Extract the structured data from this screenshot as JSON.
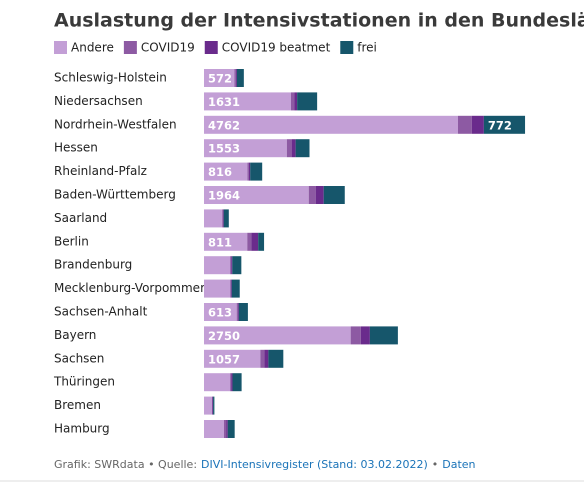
{
  "chart_data": {
    "type": "stacked-bar-horizontal",
    "title": "Auslastung der Intensivstationen in den Bundesländern",
    "categories": [
      "Schleswig-Holstein",
      "Niedersachsen",
      "Nordrhein-Westfalen",
      "Hessen",
      "Rheinland-Pfalz",
      "Baden-Württemberg",
      "Saarland",
      "Berlin",
      "Brandenburg",
      "Mecklenburg-Vorpommern",
      "Sachsen-Anhalt",
      "Bayern",
      "Sachsen",
      "Thüringen",
      "Bremen",
      "Hamburg"
    ],
    "series": [
      {
        "name": "Andere",
        "color": "#c39fd6",
        "values": [
          572,
          1631,
          4762,
          1553,
          816,
          1964,
          340,
          811,
          490,
          490,
          613,
          2750,
          1057,
          490,
          150,
          375
        ]
      },
      {
        "name": "COVID19",
        "color": "#8d5aa3",
        "values": [
          25,
          60,
          260,
          90,
          25,
          130,
          15,
          75,
          20,
          15,
          20,
          190,
          75,
          25,
          10,
          40
        ]
      },
      {
        "name": "COVID19 beatmet",
        "color": "#6a2b8c",
        "values": [
          20,
          55,
          225,
          75,
          25,
          150,
          15,
          130,
          20,
          15,
          20,
          170,
          75,
          20,
          10,
          30
        ]
      },
      {
        "name": "frei",
        "color": "#16566b",
        "values": [
          130,
          375,
          772,
          260,
          225,
          395,
          95,
          110,
          170,
          150,
          170,
          525,
          280,
          170,
          25,
          130
        ]
      }
    ],
    "source": "Grafik: SWRdata • Quelle:",
    "source_link": "DIVI-Intensivregister (Stand: 03.02.2022)",
    "separator": "•",
    "data_link": "Daten"
  }
}
